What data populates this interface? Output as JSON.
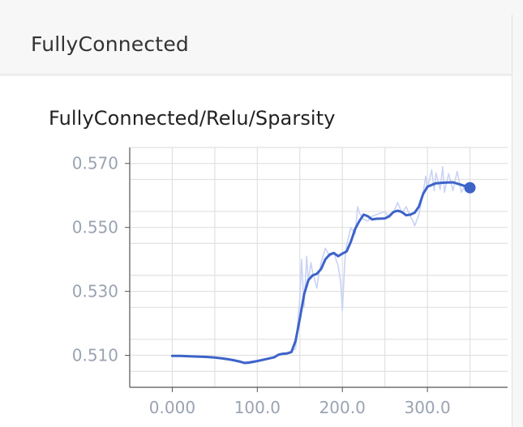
{
  "group": {
    "title": "FullyConnected"
  },
  "card": {
    "title": "FullyConnected/Relu/Sparsity"
  },
  "chart_data": {
    "type": "line",
    "title": "FullyConnected/Relu/Sparsity",
    "xlabel": "",
    "ylabel": "",
    "xlim": [
      -50,
      400
    ],
    "ylim": [
      0.5,
      0.575
    ],
    "x_ticks": [
      0,
      100,
      200,
      300
    ],
    "x_tick_labels": [
      "0.000",
      "100.0",
      "200.0",
      "300.0"
    ],
    "y_ticks": [
      0.51,
      0.53,
      0.55,
      0.57
    ],
    "y_tick_labels": [
      "0.510",
      "0.530",
      "0.550",
      "0.570"
    ],
    "grid": true,
    "colors": {
      "line": "#3d63c9",
      "raw": "#c9d3f5",
      "grid": "#e1e1e1",
      "axis": "#555555"
    },
    "series": [
      {
        "values_x": [
          0,
          10,
          20,
          30,
          40,
          50,
          60,
          70,
          80,
          85,
          90,
          100,
          110,
          120,
          125,
          130,
          135,
          140,
          145,
          150,
          155,
          160,
          165,
          170,
          175,
          180,
          185,
          190,
          195,
          200,
          205,
          210,
          215,
          220,
          225,
          230,
          235,
          240,
          250,
          255,
          260,
          265,
          270,
          275,
          280,
          285,
          290,
          295,
          300,
          305,
          310,
          320,
          330,
          340,
          350
        ],
        "values_y": [
          0.5098,
          0.5098,
          0.5097,
          0.5096,
          0.5095,
          0.5093,
          0.509,
          0.5086,
          0.508,
          0.5076,
          0.5077,
          0.5082,
          0.5088,
          0.5094,
          0.5102,
          0.5105,
          0.5106,
          0.511,
          0.5145,
          0.5215,
          0.529,
          0.5335,
          0.535,
          0.5355,
          0.537,
          0.54,
          0.5415,
          0.542,
          0.541,
          0.5418,
          0.5425,
          0.5455,
          0.5495,
          0.552,
          0.554,
          0.5535,
          0.5525,
          0.5527,
          0.5528,
          0.5535,
          0.5548,
          0.5552,
          0.5548,
          0.5538,
          0.554,
          0.5546,
          0.5565,
          0.5605,
          0.5627,
          0.5633,
          0.5638,
          0.564,
          0.5641,
          0.5633,
          0.5624
        ]
      },
      {
        "values_x": [
          0,
          20,
          40,
          60,
          80,
          100,
          120,
          130,
          140,
          145,
          150,
          152,
          155,
          158,
          160,
          163,
          165,
          170,
          172,
          175,
          180,
          185,
          190,
          195,
          198,
          200,
          203,
          205,
          210,
          215,
          218,
          220,
          225,
          230,
          235,
          240,
          245,
          250,
          255,
          260,
          265,
          270,
          275,
          280,
          283,
          285,
          290,
          295,
          298,
          300,
          305,
          308,
          310,
          315,
          318,
          320,
          325,
          330,
          335,
          340,
          345,
          350
        ],
        "values_y": [
          0.5098,
          0.5097,
          0.5094,
          0.509,
          0.5078,
          0.5083,
          0.5095,
          0.5105,
          0.5112,
          0.512,
          0.528,
          0.54,
          0.525,
          0.541,
          0.533,
          0.539,
          0.536,
          0.531,
          0.535,
          0.539,
          0.5435,
          0.541,
          0.542,
          0.538,
          0.533,
          0.524,
          0.54,
          0.5445,
          0.55,
          0.548,
          0.5565,
          0.5545,
          0.5525,
          0.552,
          0.5535,
          0.554,
          0.5545,
          0.555,
          0.553,
          0.5546,
          0.5578,
          0.5545,
          0.5565,
          0.5535,
          0.552,
          0.5505,
          0.554,
          0.561,
          0.566,
          0.562,
          0.568,
          0.5615,
          0.567,
          0.5618,
          0.569,
          0.561,
          0.5668,
          0.5615,
          0.5675,
          0.561,
          0.5635,
          0.5624
        ]
      }
    ]
  }
}
